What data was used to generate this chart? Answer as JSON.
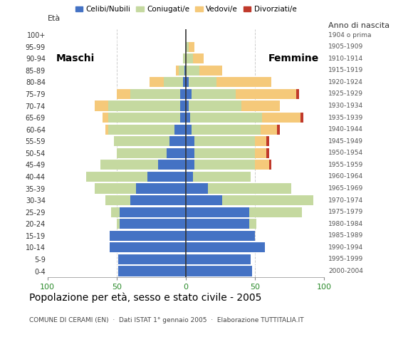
{
  "age_groups": [
    "0-4",
    "5-9",
    "10-14",
    "15-19",
    "20-24",
    "25-29",
    "30-34",
    "35-39",
    "40-44",
    "45-49",
    "50-54",
    "55-59",
    "60-64",
    "65-69",
    "70-74",
    "75-79",
    "80-84",
    "85-89",
    "90-94",
    "95-99",
    "100+"
  ],
  "birth_years": [
    "2000-2004",
    "1995-1999",
    "1990-1994",
    "1985-1989",
    "1980-1984",
    "1975-1979",
    "1970-1974",
    "1965-1969",
    "1960-1964",
    "1955-1959",
    "1950-1954",
    "1945-1949",
    "1940-1944",
    "1935-1939",
    "1930-1934",
    "1925-1929",
    "1920-1924",
    "1915-1919",
    "1910-1914",
    "1905-1909",
    "1904 o prima"
  ],
  "males_celibi": [
    49,
    49,
    55,
    55,
    48,
    48,
    40,
    36,
    28,
    20,
    14,
    12,
    8,
    4,
    4,
    4,
    2,
    1,
    0,
    0,
    0
  ],
  "males_coniugati": [
    0,
    0,
    0,
    0,
    2,
    6,
    18,
    30,
    44,
    42,
    36,
    40,
    48,
    52,
    52,
    36,
    14,
    4,
    2,
    0,
    0
  ],
  "males_vedovi": [
    0,
    0,
    0,
    0,
    0,
    0,
    0,
    0,
    0,
    0,
    0,
    0,
    2,
    4,
    10,
    10,
    10,
    2,
    0,
    0,
    0
  ],
  "males_divorziati": [
    0,
    0,
    0,
    0,
    0,
    0,
    0,
    0,
    0,
    0,
    0,
    0,
    0,
    0,
    0,
    0,
    0,
    0,
    0,
    0,
    0
  ],
  "fem_celibi": [
    48,
    47,
    57,
    50,
    46,
    46,
    26,
    16,
    5,
    6,
    6,
    6,
    4,
    3,
    2,
    4,
    2,
    0,
    0,
    0,
    0
  ],
  "fem_coniugati": [
    0,
    0,
    0,
    0,
    5,
    38,
    66,
    60,
    42,
    44,
    44,
    44,
    50,
    52,
    38,
    32,
    20,
    10,
    5,
    2,
    0
  ],
  "fem_vedovi": [
    0,
    0,
    0,
    0,
    0,
    0,
    0,
    0,
    0,
    10,
    8,
    8,
    12,
    28,
    28,
    44,
    40,
    16,
    8,
    4,
    0
  ],
  "fem_divorziati": [
    0,
    0,
    0,
    0,
    0,
    0,
    0,
    0,
    0,
    2,
    2,
    2,
    2,
    2,
    0,
    2,
    0,
    0,
    0,
    0,
    0
  ],
  "colors_celibi": "#4472c4",
  "colors_coniugati": "#c5d9a0",
  "colors_vedovi": "#f5c97a",
  "colors_divorziati": "#c0392b",
  "legend_labels": [
    "Celibi/Nubili",
    "Coniugati/e",
    "Vedovi/e",
    "Divorziati/e"
  ],
  "title": "Popolazione per età, sesso e stato civile - 2005",
  "subtitle": "COMUNE DI CERAMI (EN)  ·  Dati ISTAT 1° gennaio 2005  ·  Elaborazione TUTTITALIA.IT",
  "label_maschi": "Maschi",
  "label_femmine": "Femmine",
  "label_eta": "Età",
  "label_anno": "Anno di nascita",
  "xlim": 100,
  "bg_color": "#ffffff",
  "grid_color": "#cccccc",
  "tick_color": "#2a8a2a"
}
